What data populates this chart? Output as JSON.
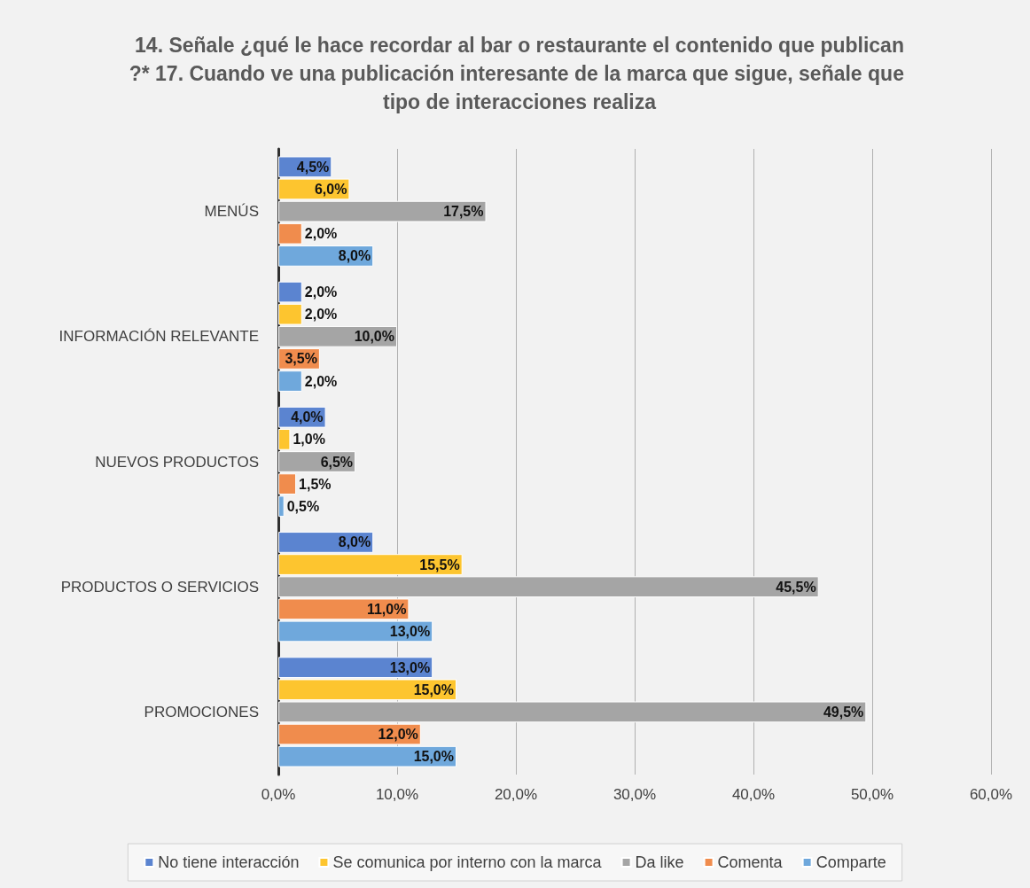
{
  "chart_data": {
    "type": "bar",
    "orientation": "horizontal",
    "title": "14. Señale ¿qué le hace recordar al bar o restaurante el contenido que publican?* 17. Cuando ve una publicación interesante de la marca que sigue, señale que tipo de interacciones realiza",
    "categories": [
      "MENÚS",
      "INFORMACIÓN RELEVANTE",
      "NUEVOS PRODUCTOS",
      "PRODUCTOS O SERVICIOS",
      "PROMOCIONES"
    ],
    "series": [
      {
        "name": "No tiene interacción",
        "color": "#5b84d0",
        "values": [
          4.5,
          2.0,
          4.0,
          8.0,
          13.0
        ],
        "value_labels": [
          "4,5%",
          "2,0%",
          "4,0%",
          "8,0%",
          "13,0%"
        ]
      },
      {
        "name": "Se comunica por interno con la marca",
        "color": "#fdc52f",
        "values": [
          6.0,
          2.0,
          1.0,
          15.5,
          15.0
        ],
        "value_labels": [
          "6,0%",
          "2,0%",
          "1,0%",
          "15,5%",
          "15,0%"
        ]
      },
      {
        "name": "Da like",
        "color": "#a5a5a5",
        "values": [
          17.5,
          10.0,
          6.5,
          45.5,
          49.5
        ],
        "value_labels": [
          "17,5%",
          "10,0%",
          "6,5%",
          "45,5%",
          "49,5%"
        ]
      },
      {
        "name": "Comenta",
        "color": "#f08c4d",
        "values": [
          2.0,
          3.5,
          1.5,
          11.0,
          12.0
        ],
        "value_labels": [
          "2,0%",
          "3,5%",
          "1,5%",
          "11,0%",
          "12,0%"
        ]
      },
      {
        "name": "Comparte",
        "color": "#6fa8dc",
        "values": [
          8.0,
          2.0,
          0.5,
          13.0,
          15.0
        ],
        "value_labels": [
          "8,0%",
          "2,0%",
          "0,5%",
          "13,0%",
          "15,0%"
        ]
      }
    ],
    "xlim": [
      0,
      60
    ],
    "xticks": [
      {
        "value": 0,
        "label": "0,0%"
      },
      {
        "value": 10,
        "label": "10,0%"
      },
      {
        "value": 20,
        "label": "20,0%"
      },
      {
        "value": 30,
        "label": "30,0%"
      },
      {
        "value": 40,
        "label": "40,0%"
      },
      {
        "value": 50,
        "label": "50,0%"
      },
      {
        "value": 60,
        "label": "60,0%"
      }
    ],
    "grid": "x",
    "legend": "bottom"
  }
}
